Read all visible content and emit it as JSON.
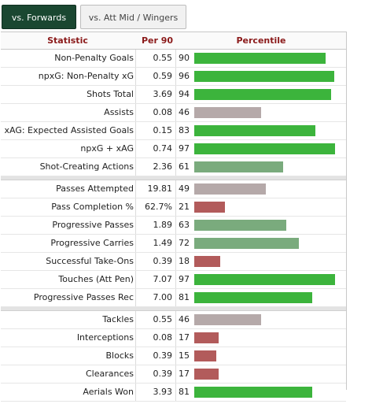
{
  "tabs": [
    {
      "label": "vs. Forwards",
      "active": true
    },
    {
      "label": "vs. Att Mid / Wingers",
      "active": false
    }
  ],
  "headers": {
    "statistic": "Statistic",
    "per90": "Per 90",
    "percentile": "Percentile"
  },
  "colors": {
    "high": "#3cb43c",
    "mid": "#7aab7d",
    "low": "#b5a9a9",
    "poor": "#b25b5b",
    "tab_active_bg": "#1a4731",
    "header_text": "#8b1a1a"
  },
  "groups": [
    [
      {
        "stat": "Non-Penalty Goals",
        "per90": "0.55",
        "percentile": "90",
        "tier": "high"
      },
      {
        "stat": "npxG: Non-Penalty xG",
        "per90": "0.59",
        "percentile": "96",
        "tier": "high"
      },
      {
        "stat": "Shots Total",
        "per90": "3.69",
        "percentile": "94",
        "tier": "high"
      },
      {
        "stat": "Assists",
        "per90": "0.08",
        "percentile": "46",
        "tier": "low"
      },
      {
        "stat": "xAG: Expected Assisted Goals",
        "per90": "0.15",
        "percentile": "83",
        "tier": "high"
      },
      {
        "stat": "npxG + xAG",
        "per90": "0.74",
        "percentile": "97",
        "tier": "high"
      },
      {
        "stat": "Shot-Creating Actions",
        "per90": "2.36",
        "percentile": "61",
        "tier": "mid"
      }
    ],
    [
      {
        "stat": "Passes Attempted",
        "per90": "19.81",
        "percentile": "49",
        "tier": "low"
      },
      {
        "stat": "Pass Completion %",
        "per90": "62.7%",
        "percentile": "21",
        "tier": "poor"
      },
      {
        "stat": "Progressive Passes",
        "per90": "1.89",
        "percentile": "63",
        "tier": "mid"
      },
      {
        "stat": "Progressive Carries",
        "per90": "1.49",
        "percentile": "72",
        "tier": "mid"
      },
      {
        "stat": "Successful Take-Ons",
        "per90": "0.39",
        "percentile": "18",
        "tier": "poor"
      },
      {
        "stat": "Touches (Att Pen)",
        "per90": "7.07",
        "percentile": "97",
        "tier": "high"
      },
      {
        "stat": "Progressive Passes Rec",
        "per90": "7.00",
        "percentile": "81",
        "tier": "high"
      }
    ],
    [
      {
        "stat": "Tackles",
        "per90": "0.55",
        "percentile": "46",
        "tier": "low"
      },
      {
        "stat": "Interceptions",
        "per90": "0.08",
        "percentile": "17",
        "tier": "poor"
      },
      {
        "stat": "Blocks",
        "per90": "0.39",
        "percentile": "15",
        "tier": "poor"
      },
      {
        "stat": "Clearances",
        "per90": "0.39",
        "percentile": "17",
        "tier": "poor"
      },
      {
        "stat": "Aerials Won",
        "per90": "3.93",
        "percentile": "81",
        "tier": "high"
      }
    ]
  ]
}
